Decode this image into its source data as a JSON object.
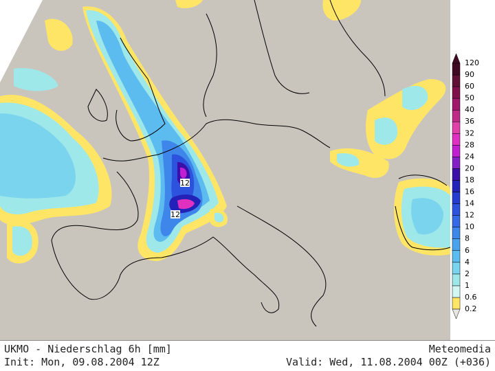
{
  "map": {
    "contour_labels": [
      "12",
      "12"
    ]
  },
  "legend": {
    "levels": [
      0.2,
      0.6,
      1,
      2,
      4,
      6,
      8,
      10,
      12,
      14,
      16,
      18,
      20,
      24,
      28,
      32,
      36,
      40,
      50,
      60,
      90,
      120
    ],
    "colors": [
      "#ffe566",
      "#d2f6f4",
      "#9ee8ea",
      "#7ad4ee",
      "#5cbcf0",
      "#4aa2ee",
      "#3e86ea",
      "#346ae6",
      "#2c52de",
      "#263cd0",
      "#2222b8",
      "#3a10a8",
      "#8420c8",
      "#c020d0",
      "#e030c0",
      "#e040a8",
      "#c02888",
      "#a0186a",
      "#80104c",
      "#601034",
      "#400a22"
    ]
  },
  "footer": {
    "title": "UKMO - Niederschlag 6h [mm]",
    "brand": "Meteomedia",
    "init": "Init: Mon, 09.08.2004 12Z",
    "valid": "Valid: Wed, 11.08.2004 00Z (+036)"
  }
}
